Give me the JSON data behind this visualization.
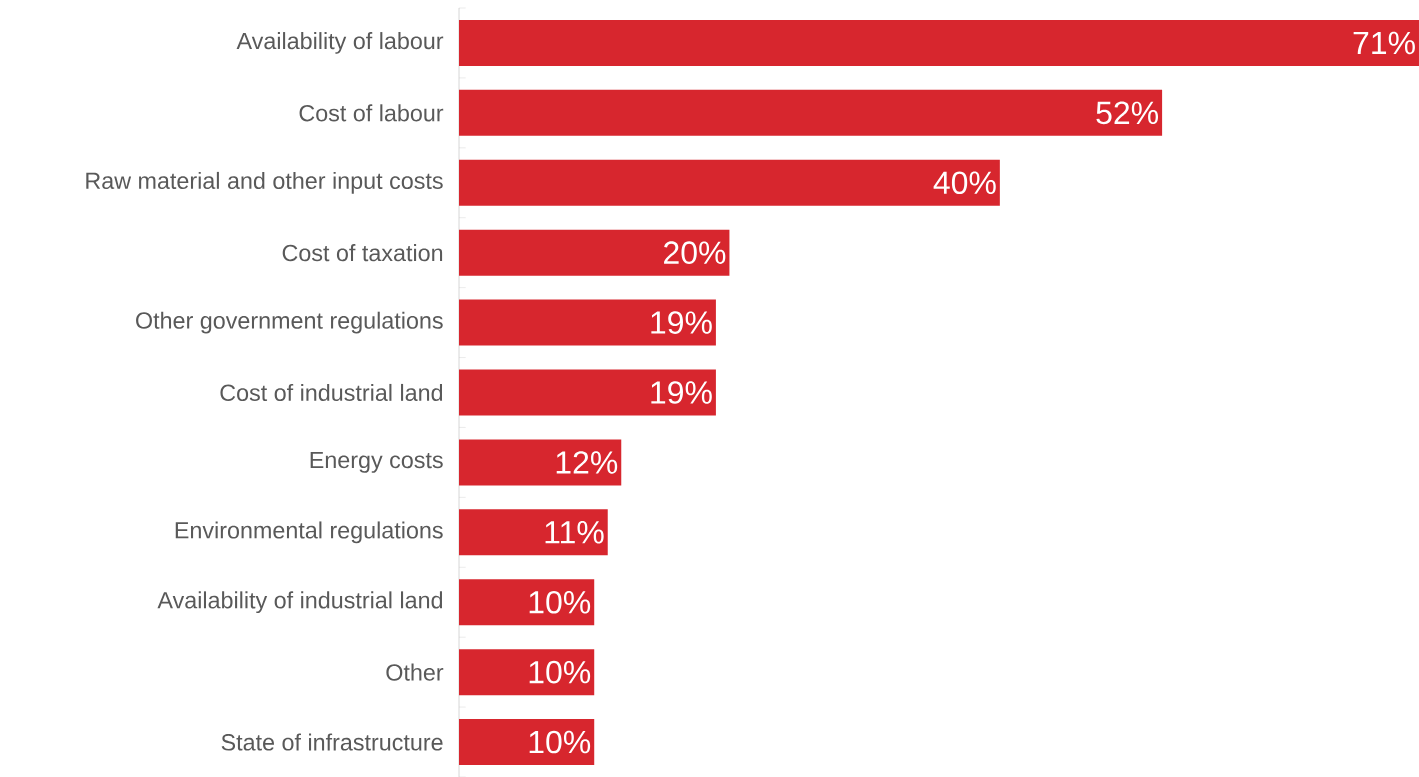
{
  "chart_data": {
    "type": "bar",
    "orientation": "horizontal",
    "categories": [
      "Availability of labour",
      "Cost of labour",
      "Raw material and other input costs",
      "Cost of taxation",
      "Other government regulations",
      "Cost of industrial land",
      "Energy costs",
      "Environmental regulations",
      "Availability of industrial land",
      "Other",
      "State of infrastructure"
    ],
    "values": [
      71,
      52,
      40,
      20,
      19,
      19,
      12,
      11,
      10,
      10,
      10
    ],
    "value_labels": [
      "71%",
      "52%",
      "40%",
      "20%",
      "19%",
      "19%",
      "12%",
      "11%",
      "10%",
      "10%",
      "10%"
    ],
    "color": "#d7262e"
  }
}
